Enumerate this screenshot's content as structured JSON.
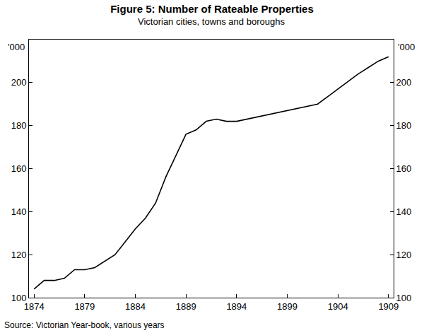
{
  "chart_data": {
    "type": "line",
    "title": "Figure 5: Number of Rateable Properties",
    "subtitle": "Victorian cities, towns and boroughs",
    "ylabel": "'000",
    "source": "Source: Victorian Year-book, various years",
    "x": [
      1874,
      1875,
      1876,
      1877,
      1878,
      1879,
      1880,
      1881,
      1882,
      1883,
      1884,
      1885,
      1886,
      1887,
      1888,
      1889,
      1890,
      1891,
      1892,
      1893,
      1894,
      1902,
      1903,
      1904,
      1905,
      1906,
      1907,
      1908,
      1909
    ],
    "values": [
      104,
      108,
      108,
      109,
      113,
      113,
      114,
      117,
      120,
      126,
      132,
      137,
      144,
      156,
      166,
      176,
      178,
      182,
      183,
      182,
      182,
      190,
      193.5,
      197,
      200.5,
      204,
      207,
      210,
      212
    ],
    "color": "#000000",
    "xlim": [
      1873.5,
      1909.5
    ],
    "xticks": [
      1874,
      1879,
      1884,
      1889,
      1894,
      1899,
      1904,
      1909
    ],
    "ylim": [
      100,
      220
    ],
    "yticks": [
      100,
      120,
      140,
      160,
      180,
      200
    ],
    "grid": false
  }
}
